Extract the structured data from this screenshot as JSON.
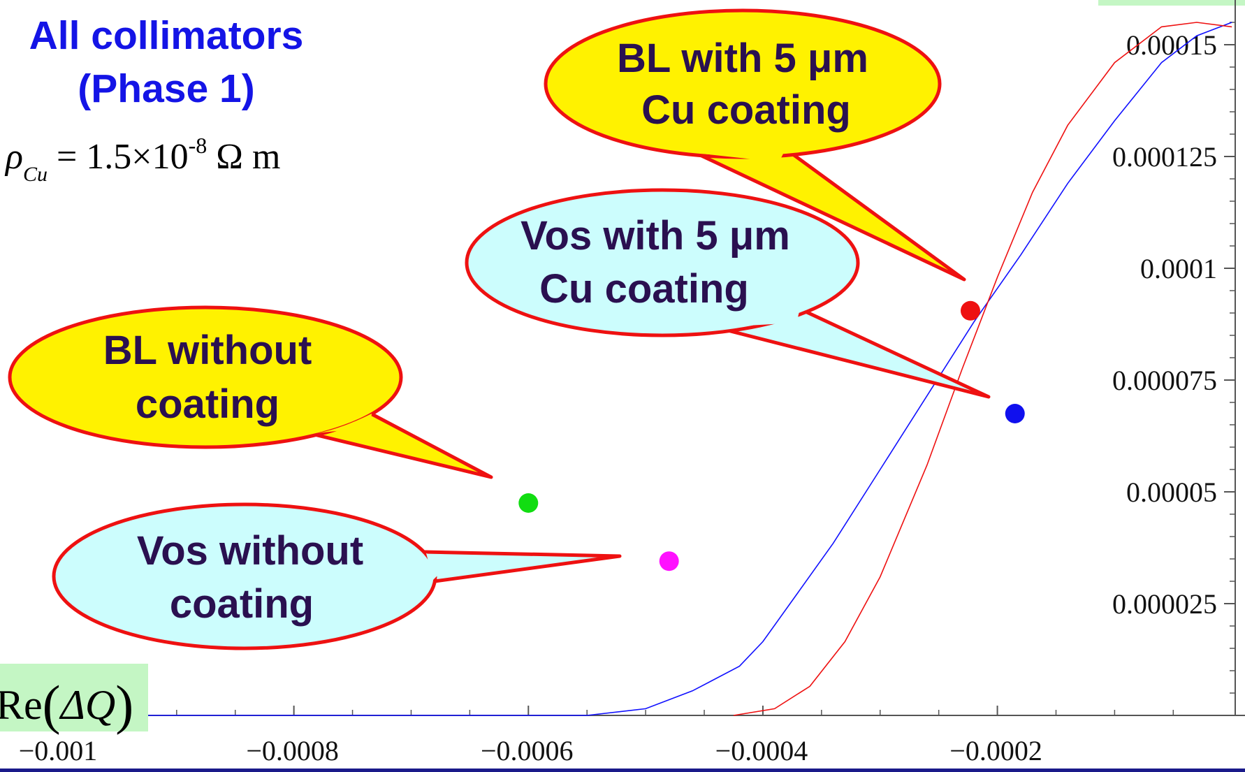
{
  "chart_data": {
    "type": "line",
    "title": "All collimators",
    "subtitle": "(Phase 1)",
    "formula": {
      "symbol": "ρ",
      "subscript": "Cu",
      "expression": "= 1.5×10",
      "exponent": "-8",
      "unit": "Ω m"
    },
    "ylabel": {
      "prefix": "Re",
      "symbol": "ΔQ"
    },
    "xlabel": "",
    "xlim": [
      -0.001,
      1e-05
    ],
    "ylim": [
      0,
      0.00016
    ],
    "x_ticks": [
      "−0.001",
      "−0.0008",
      "−0.0006",
      "−0.0004",
      "−0.0002"
    ],
    "y_ticks": [
      "0.000025",
      "0.00005",
      "0.000075",
      "0.0001",
      "0.000125",
      "0.00015"
    ],
    "colors": {
      "title": "#1414e6",
      "yellow_callout": "#fff200",
      "cyan_callout": "#ccfdfd",
      "callout_border": "#ee1111",
      "label_box": "#c4f6c4"
    },
    "series": [
      {
        "color": "#1010ff",
        "x": [
          -0.001,
          -0.00055,
          -0.0005,
          -0.00046,
          -0.00042,
          -0.0004,
          -0.00037,
          -0.00034,
          -0.0003,
          -0.00026,
          -0.00022,
          -0.00018,
          -0.00014,
          -0.0001,
          -6e-05,
          -3e-05,
          0.0
        ],
        "y": [
          0,
          0,
          1.5e-06,
          5.5e-06,
          1.1e-05,
          1.65e-05,
          2.75e-05,
          3.85e-05,
          5.5e-05,
          7.15e-05,
          8.8e-05,
          0.000103,
          0.000119,
          0.000133,
          0.000146,
          0.000152,
          0.000155
        ]
      },
      {
        "color": "#ee1111",
        "x": [
          -0.000425,
          -0.00039,
          -0.00036,
          -0.00033,
          -0.0003,
          -0.00026,
          -0.00023,
          -0.0002,
          -0.00017,
          -0.00014,
          -0.0001,
          -6e-05,
          -3e-05,
          0.0
        ],
        "y": [
          0,
          1.5e-06,
          6.5e-06,
          1.65e-05,
          3.1e-05,
          5.6e-05,
          7.75e-05,
          9.8e-05,
          0.000117,
          0.000132,
          0.000146,
          0.000154,
          0.000155,
          0.000154
        ]
      }
    ],
    "points": [
      {
        "color": "#11dd11",
        "x": -0.0006,
        "y": 4.75e-05
      },
      {
        "color": "#ff11ff",
        "x": -0.00048,
        "y": 3.45e-05
      },
      {
        "color": "#ee1111",
        "x": -0.000223,
        "y": 9.05e-05
      },
      {
        "color": "#1010ee",
        "x": -0.000185,
        "y": 6.75e-05
      }
    ],
    "annotations": [
      {
        "lines": [
          "BL with 5 μm",
          "Cu coating"
        ],
        "style": "yellow"
      },
      {
        "lines": [
          "Vos with 5 μm",
          "Cu coating"
        ],
        "style": "cyan"
      },
      {
        "lines": [
          "BL without",
          "coating"
        ],
        "style": "yellow"
      },
      {
        "lines": [
          "Vos without",
          "coating"
        ],
        "style": "cyan"
      }
    ]
  }
}
